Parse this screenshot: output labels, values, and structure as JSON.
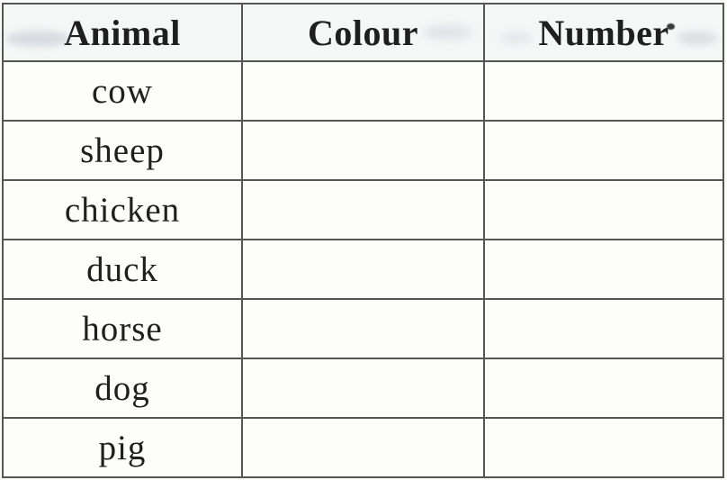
{
  "table": {
    "headers": [
      "Animal",
      "Colour",
      "Number"
    ],
    "rows": [
      {
        "animal": "cow",
        "colour": "",
        "number": ""
      },
      {
        "animal": "sheep",
        "colour": "",
        "number": ""
      },
      {
        "animal": "chicken",
        "colour": "",
        "number": ""
      },
      {
        "animal": "duck",
        "colour": "",
        "number": ""
      },
      {
        "animal": "horse",
        "colour": "",
        "number": ""
      },
      {
        "animal": "dog",
        "colour": "",
        "number": ""
      },
      {
        "animal": "pig",
        "colour": "",
        "number": ""
      }
    ]
  },
  "colors": {
    "paper": "#fbfbf8",
    "cell_bg": "#fdfdfb",
    "header_bg": "#f5f7f7",
    "border": "#555555",
    "text": "#1f1f1f"
  }
}
